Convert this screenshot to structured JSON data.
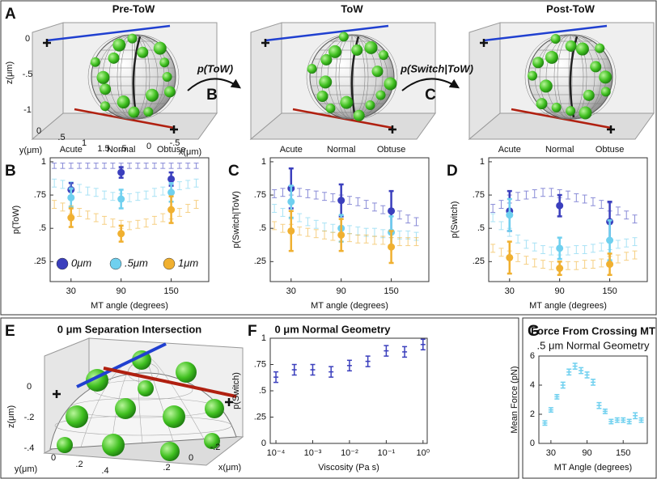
{
  "panel_labels": [
    "A",
    "B",
    "C",
    "D",
    "E",
    "F",
    "G"
  ],
  "panel_a": {
    "titles": [
      "Pre-ToW",
      "ToW",
      "Post-ToW"
    ],
    "arrows": [
      "p(ToW)",
      "p(Switch|ToW)"
    ],
    "z_label": "z(μm)",
    "z_ticks": [
      "0",
      "-.5",
      "-1"
    ],
    "y_label": "y(μm)",
    "y_ticks": [
      "0",
      ".5",
      "1",
      "1.5"
    ],
    "x_label": "x(μm)",
    "x_ticks": [
      ".5",
      "0",
      "-.5"
    ]
  },
  "panel_e": {
    "title": "0 μm Separation Intersection",
    "z_label": "z(μm)",
    "z_ticks": [
      "0",
      "-.2",
      "-.4"
    ],
    "y_label": "y(μm)",
    "y_ticks": [
      "0",
      ".2",
      ".4"
    ],
    "x_label": "x(μm)",
    "x_ticks": [
      ".2",
      "0",
      "-.2"
    ]
  },
  "chart_data": [
    {
      "type": "errorbar",
      "y_label": "p(ToW)",
      "x_label": "MT angle (degrees)",
      "annotations": [
        "Acute",
        "Normal",
        "Obtuse"
      ],
      "legend": "lower",
      "xlim": [
        5,
        195
      ],
      "xticks": [
        30,
        90,
        150
      ],
      "ylim": [
        0.1,
        1.03
      ],
      "yticks": [
        {
          "value": 0.25,
          "label": ".25"
        },
        {
          "value": 0.5,
          "label": ".5"
        },
        {
          "value": 0.75,
          "label": ".75"
        },
        1
      ],
      "x": [
        10,
        20,
        30,
        40,
        50,
        60,
        70,
        80,
        90,
        100,
        110,
        120,
        130,
        140,
        150,
        160,
        170,
        180
      ],
      "highlight_x": [
        30,
        90,
        150
      ],
      "series": [
        {
          "name": "0μm",
          "color": "#3b3fbd",
          "values": [
            0.97,
            0.97,
            0.97,
            0.97,
            0.97,
            0.97,
            0.97,
            0.97,
            0.97,
            0.97,
            0.97,
            0.97,
            0.97,
            0.97,
            0.97,
            0.97,
            0.97,
            0.97
          ],
          "errors": [
            0.02,
            0.02,
            0.02,
            0.02,
            0.02,
            0.02,
            0.02,
            0.02,
            0.02,
            0.02,
            0.02,
            0.02,
            0.02,
            0.02,
            0.02,
            0.02,
            0.02,
            0.02
          ],
          "highlight_values": [
            0.79,
            0.92,
            0.87
          ],
          "highlight_errors": [
            0.05,
            0.04,
            0.05
          ]
        },
        {
          "name": ".5μm",
          "color": "#6fd0ef",
          "values": [
            0.84,
            0.83,
            0.82,
            0.8,
            0.78,
            0.77,
            0.75,
            0.74,
            0.73,
            0.73,
            0.74,
            0.75,
            0.77,
            0.78,
            0.8,
            0.82,
            0.83,
            0.84
          ],
          "errors": [
            0.03,
            0.03,
            0.03,
            0.03,
            0.03,
            0.03,
            0.03,
            0.03,
            0.03,
            0.03,
            0.03,
            0.03,
            0.03,
            0.03,
            0.03,
            0.03,
            0.03,
            0.03
          ],
          "highlight_values": [
            0.73,
            0.72,
            0.77
          ],
          "highlight_errors": [
            0.07,
            0.07,
            0.07
          ]
        },
        {
          "name": "1μm",
          "color": "#f0b030",
          "values": [
            0.68,
            0.66,
            0.64,
            0.62,
            0.6,
            0.58,
            0.56,
            0.54,
            0.53,
            0.52,
            0.53,
            0.54,
            0.56,
            0.58,
            0.6,
            0.62,
            0.65,
            0.68
          ],
          "errors": [
            0.03,
            0.03,
            0.03,
            0.03,
            0.03,
            0.03,
            0.03,
            0.03,
            0.03,
            0.03,
            0.03,
            0.03,
            0.03,
            0.03,
            0.03,
            0.03,
            0.03,
            0.03
          ],
          "highlight_values": [
            0.58,
            0.46,
            0.64
          ],
          "highlight_errors": [
            0.07,
            0.06,
            0.1
          ]
        }
      ]
    },
    {
      "type": "errorbar",
      "y_label": "p(Switch|ToW)",
      "x_label": "MT angle (degrees)",
      "annotations": [
        "Acute",
        "Normal",
        "Obtuse"
      ],
      "xlim": [
        5,
        195
      ],
      "xticks": [
        30,
        90,
        150
      ],
      "ylim": [
        0.1,
        1.03
      ],
      "yticks": [
        {
          "value": 0.25,
          "label": ".25"
        },
        {
          "value": 0.5,
          "label": ".5"
        },
        {
          "value": 0.75,
          "label": ".75"
        },
        1
      ],
      "x": [
        10,
        20,
        30,
        40,
        50,
        60,
        70,
        80,
        90,
        100,
        110,
        120,
        130,
        140,
        150,
        160,
        170,
        180
      ],
      "highlight_x": [
        30,
        90,
        150
      ],
      "series": [
        {
          "name": "0μm",
          "color": "#3b3fbd",
          "values": [
            0.76,
            0.77,
            0.78,
            0.77,
            0.76,
            0.75,
            0.74,
            0.73,
            0.72,
            0.71,
            0.7,
            0.68,
            0.66,
            0.64,
            0.62,
            0.6,
            0.57,
            0.55
          ],
          "errors": [
            0.03,
            0.03,
            0.03,
            0.03,
            0.03,
            0.03,
            0.03,
            0.03,
            0.03,
            0.03,
            0.03,
            0.03,
            0.03,
            0.03,
            0.03,
            0.03,
            0.03,
            0.03
          ],
          "highlight_values": [
            0.8,
            0.71,
            0.63
          ],
          "highlight_errors": [
            0.15,
            0.12,
            0.15
          ]
        },
        {
          "name": ".5μm",
          "color": "#6fd0ef",
          "values": [
            0.65,
            0.62,
            0.6,
            0.58,
            0.55,
            0.53,
            0.51,
            0.5,
            0.49,
            0.49,
            0.48,
            0.47,
            0.47,
            0.46,
            0.46,
            0.45,
            0.45,
            0.44
          ],
          "errors": [
            0.03,
            0.03,
            0.03,
            0.03,
            0.03,
            0.03,
            0.03,
            0.03,
            0.03,
            0.03,
            0.03,
            0.03,
            0.03,
            0.03,
            0.03,
            0.03,
            0.03,
            0.03
          ],
          "highlight_values": [
            0.7,
            0.5,
            0.47
          ],
          "highlight_errors": [
            0.12,
            0.1,
            0.12
          ]
        },
        {
          "name": "1μm",
          "color": "#f0b030",
          "values": [
            0.52,
            0.5,
            0.5,
            0.48,
            0.47,
            0.46,
            0.45,
            0.44,
            0.43,
            0.43,
            0.42,
            0.42,
            0.41,
            0.41,
            0.4,
            0.4,
            0.4,
            0.4
          ],
          "errors": [
            0.03,
            0.03,
            0.03,
            0.03,
            0.03,
            0.03,
            0.03,
            0.03,
            0.03,
            0.03,
            0.03,
            0.03,
            0.03,
            0.03,
            0.03,
            0.03,
            0.03,
            0.03
          ],
          "highlight_values": [
            0.48,
            0.45,
            0.36
          ],
          "highlight_errors": [
            0.15,
            0.12,
            0.12
          ]
        }
      ]
    },
    {
      "type": "errorbar",
      "y_label": "p(Switch)",
      "x_label": "MT angle (degrees)",
      "annotations": [
        "Acute",
        "Normal",
        "Obtuse"
      ],
      "xlim": [
        5,
        195
      ],
      "xticks": [
        30,
        90,
        150
      ],
      "ylim": [
        0.1,
        1.03
      ],
      "yticks": [
        {
          "value": 0.25,
          "label": ".25"
        },
        {
          "value": 0.5,
          "label": ".5"
        },
        {
          "value": 0.75,
          "label": ".75"
        },
        1
      ],
      "x": [
        10,
        20,
        30,
        40,
        50,
        60,
        70,
        80,
        90,
        100,
        110,
        120,
        130,
        140,
        150,
        160,
        170,
        180
      ],
      "highlight_x": [
        30,
        90,
        150
      ],
      "series": [
        {
          "name": "0μm",
          "color": "#3b3fbd",
          "values": [
            0.65,
            0.68,
            0.72,
            0.74,
            0.75,
            0.76,
            0.77,
            0.77,
            0.76,
            0.75,
            0.73,
            0.72,
            0.7,
            0.68,
            0.66,
            0.63,
            0.6,
            0.57
          ],
          "errors": [
            0.03,
            0.03,
            0.03,
            0.03,
            0.03,
            0.03,
            0.03,
            0.03,
            0.03,
            0.03,
            0.03,
            0.03,
            0.03,
            0.03,
            0.03,
            0.03,
            0.03,
            0.03
          ],
          "highlight_values": [
            0.63,
            0.67,
            0.55
          ],
          "highlight_errors": [
            0.15,
            0.08,
            0.15
          ]
        },
        {
          "name": ".5μm",
          "color": "#6fd0ef",
          "values": [
            0.58,
            0.52,
            0.47,
            0.42,
            0.38,
            0.36,
            0.34,
            0.33,
            0.33,
            0.33,
            0.34,
            0.34,
            0.35,
            0.36,
            0.37,
            0.38,
            0.39,
            0.4
          ],
          "errors": [
            0.03,
            0.03,
            0.03,
            0.03,
            0.03,
            0.03,
            0.03,
            0.03,
            0.03,
            0.03,
            0.03,
            0.03,
            0.03,
            0.03,
            0.03,
            0.03,
            0.03,
            0.03
          ],
          "highlight_values": [
            0.6,
            0.35,
            0.41
          ],
          "highlight_errors": [
            0.12,
            0.08,
            0.15
          ]
        },
        {
          "name": "1μm",
          "color": "#f0b030",
          "values": [
            0.35,
            0.32,
            0.3,
            0.28,
            0.26,
            0.24,
            0.23,
            0.22,
            0.22,
            0.22,
            0.22,
            0.23,
            0.23,
            0.24,
            0.26,
            0.27,
            0.29,
            0.3
          ],
          "errors": [
            0.03,
            0.03,
            0.03,
            0.03,
            0.03,
            0.03,
            0.03,
            0.03,
            0.03,
            0.03,
            0.03,
            0.03,
            0.03,
            0.03,
            0.03,
            0.03,
            0.03,
            0.03
          ],
          "highlight_values": [
            0.28,
            0.2,
            0.23
          ],
          "highlight_errors": [
            0.12,
            0.05,
            0.08
          ]
        }
      ]
    },
    {
      "type": "errorbar",
      "title": "0 μm Normal Geometry",
      "y_label": "p(Switch)",
      "x_label": "Viscosity (Pa s)",
      "xscale": "log",
      "xlim": [
        7e-05,
        1.3
      ],
      "xticks": [
        {
          "value": 0.0001,
          "label": "10⁻⁴"
        },
        {
          "value": 0.001,
          "label": "10⁻³"
        },
        {
          "value": 0.01,
          "label": "10⁻²"
        },
        {
          "value": 0.1,
          "label": "10⁻¹"
        },
        {
          "value": 1,
          "label": "10⁰"
        }
      ],
      "ylim": [
        0,
        1
      ],
      "yticks": [
        0,
        {
          "value": 0.25,
          "label": ".25"
        },
        {
          "value": 0.5,
          "label": ".5"
        },
        {
          "value": 0.75,
          "label": ".75"
        },
        1
      ],
      "x": [
        0.0001,
        0.000316,
        0.001,
        0.00316,
        0.01,
        0.0316,
        0.1,
        0.316,
        1
      ],
      "series": [
        {
          "color": "#3b3fbd",
          "values": [
            0.63,
            0.7,
            0.7,
            0.68,
            0.74,
            0.78,
            0.88,
            0.87,
            0.94
          ],
          "errors": [
            0.05,
            0.05,
            0.05,
            0.05,
            0.05,
            0.05,
            0.05,
            0.05,
            0.05
          ]
        }
      ]
    },
    {
      "type": "errorbar",
      "title": "Force From Crossing MT",
      "subtitle": ".5 μm Normal Geometry",
      "y_label": "Mean Force (pN)",
      "x_label": "MT Angle (degrees)",
      "xlim": [
        10,
        190
      ],
      "xticks": [
        30,
        90,
        150
      ],
      "ylim": [
        0,
        6
      ],
      "yticks": [
        0,
        2,
        4,
        6
      ],
      "x": [
        20,
        30,
        40,
        50,
        60,
        70,
        80,
        90,
        100,
        110,
        120,
        130,
        140,
        150,
        160,
        170,
        180
      ],
      "series": [
        {
          "color": "#6fd0ef",
          "values": [
            1.4,
            2.3,
            3.2,
            4.0,
            4.9,
            5.3,
            5.0,
            4.7,
            4.2,
            2.6,
            2.2,
            1.5,
            1.6,
            1.6,
            1.5,
            1.9,
            1.6
          ],
          "errors": [
            0.15,
            0.15,
            0.15,
            0.2,
            0.2,
            0.2,
            0.2,
            0.2,
            0.2,
            0.2,
            0.15,
            0.15,
            0.15,
            0.15,
            0.15,
            0.2,
            0.15
          ]
        }
      ]
    }
  ]
}
